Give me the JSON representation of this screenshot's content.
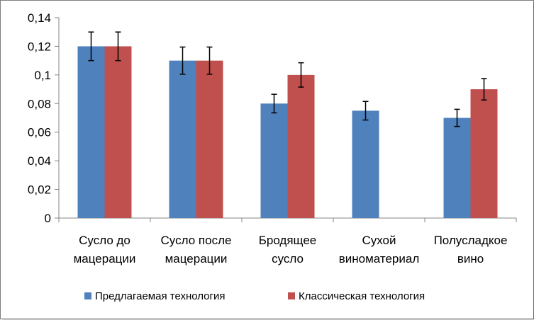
{
  "chart_data": {
    "type": "bar",
    "title": "",
    "xlabel": "",
    "ylabel": "",
    "ylim": [
      0,
      0.14
    ],
    "y_ticks": [
      "0",
      "0,02",
      "0,04",
      "0,06",
      "0,08",
      "0,1",
      "0,12",
      "0,14"
    ],
    "y_tick_values": [
      0,
      0.02,
      0.04,
      0.06,
      0.08,
      0.1,
      0.12,
      0.14
    ],
    "categories": [
      [
        "Сусло до",
        "мацерации"
      ],
      [
        "Сусло после",
        "мацерации"
      ],
      [
        "Бродящее",
        "сусло"
      ],
      [
        "Сухой",
        "виноматериал"
      ],
      [
        "Полусладкое",
        "вино"
      ]
    ],
    "series": [
      {
        "name": "Предлагаемая технология",
        "color": "#4f81bd",
        "values": [
          0.12,
          0.11,
          0.08,
          0.075,
          0.07
        ],
        "errors": [
          0.01,
          0.0095,
          0.0065,
          0.0065,
          0.006
        ]
      },
      {
        "name": "Классическая технология",
        "color": "#c0504d",
        "values": [
          0.12,
          0.11,
          0.1,
          null,
          0.09
        ],
        "errors": [
          0.01,
          0.0095,
          0.0085,
          null,
          0.0075
        ]
      }
    ],
    "grid": false,
    "legend_position": "bottom"
  }
}
